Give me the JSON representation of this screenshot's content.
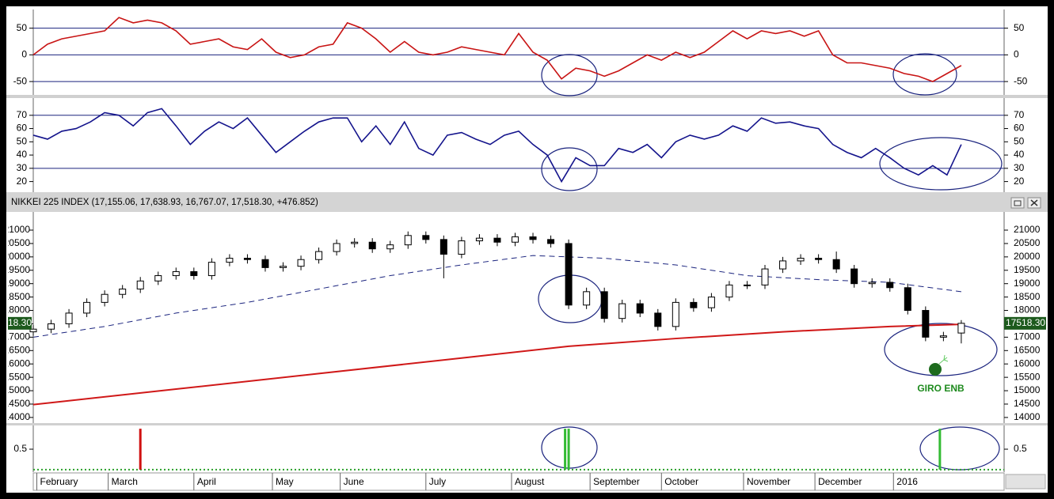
{
  "chart_data": [
    {
      "type": "line",
      "xlim": [
        0,
        272
      ],
      "ylim": [
        -75,
        85
      ],
      "yticks": [
        -50,
        0,
        50
      ],
      "reference_lines": [
        50,
        0,
        -50
      ],
      "x": [
        0,
        4,
        8,
        12,
        16,
        20,
        24,
        28,
        32,
        36,
        40,
        44,
        48,
        52,
        56,
        60,
        64,
        68,
        72,
        76,
        80,
        84,
        88,
        92,
        96,
        100,
        104,
        108,
        112,
        116,
        120,
        124,
        128,
        132,
        136,
        140,
        144,
        148,
        152,
        156,
        160,
        164,
        168,
        172,
        176,
        180,
        184,
        188,
        192,
        196,
        200,
        204,
        208,
        212,
        216,
        220,
        224,
        228,
        232,
        236,
        240,
        244,
        248,
        252,
        256,
        260
      ],
      "series": [
        {
          "color": "#c81414",
          "values": [
            0,
            20,
            30,
            35,
            40,
            45,
            70,
            60,
            65,
            60,
            45,
            20,
            25,
            30,
            15,
            10,
            30,
            5,
            -5,
            0,
            15,
            20,
            60,
            50,
            30,
            5,
            25,
            5,
            0,
            5,
            15,
            10,
            5,
            0,
            40,
            5,
            -10,
            -45,
            -25,
            -30,
            -40,
            -30,
            -15,
            0,
            -10,
            5,
            -5,
            5,
            25,
            45,
            30,
            45,
            40,
            45,
            35,
            45,
            0,
            -15,
            -15,
            -20,
            -25,
            -35,
            -40,
            -50,
            -35,
            -20
          ]
        }
      ]
    },
    {
      "type": "line",
      "xlim": [
        0,
        272
      ],
      "ylim": [
        12,
        83
      ],
      "yticks": [
        20,
        30,
        40,
        50,
        60,
        70
      ],
      "reference_lines": [
        70,
        30
      ],
      "x": [
        0,
        4,
        8,
        12,
        16,
        20,
        24,
        28,
        32,
        36,
        40,
        44,
        48,
        52,
        56,
        60,
        64,
        68,
        72,
        76,
        80,
        84,
        88,
        92,
        96,
        100,
        104,
        108,
        112,
        116,
        120,
        124,
        128,
        132,
        136,
        140,
        144,
        148,
        152,
        156,
        160,
        164,
        168,
        172,
        176,
        180,
        184,
        188,
        192,
        196,
        200,
        204,
        208,
        212,
        216,
        220,
        224,
        228,
        232,
        236,
        240,
        244,
        248,
        252,
        256,
        260
      ],
      "series": [
        {
          "color": "#14148c",
          "values": [
            55,
            52,
            58,
            60,
            65,
            72,
            70,
            62,
            72,
            75,
            62,
            48,
            58,
            65,
            60,
            68,
            55,
            42,
            50,
            58,
            65,
            68,
            68,
            50,
            62,
            48,
            65,
            45,
            40,
            55,
            57,
            52,
            48,
            55,
            58,
            48,
            40,
            20,
            38,
            32,
            32,
            45,
            42,
            48,
            38,
            50,
            55,
            52,
            55,
            62,
            58,
            68,
            64,
            65,
            62,
            60,
            48,
            42,
            38,
            45,
            38,
            30,
            25,
            32,
            25,
            48
          ]
        }
      ]
    },
    {
      "type": "candlestick",
      "title": "NIKKEI 225 INDEX (17,155.06, 17,638.93, 16,767.07, 17,518.30, +476.852)",
      "annotation": "GIRO ENB",
      "xlim": [
        0,
        272
      ],
      "ylim": [
        13790,
        21680
      ],
      "yticks": [
        14000,
        14500,
        15000,
        15500,
        16000,
        16500,
        17000,
        17500,
        18000,
        18500,
        19000,
        19500,
        20000,
        20500,
        21000
      ],
      "up_color": "#ffffff",
      "down_color": "#000000",
      "price_tag": {
        "value": 17518.3,
        "label": "17518.30"
      },
      "x": [
        0,
        5,
        10,
        15,
        20,
        25,
        30,
        35,
        40,
        45,
        50,
        55,
        60,
        65,
        70,
        75,
        80,
        85,
        90,
        95,
        100,
        105,
        110,
        115,
        120,
        125,
        130,
        135,
        140,
        145,
        150,
        155,
        160,
        165,
        170,
        175,
        180,
        185,
        190,
        195,
        200,
        205,
        210,
        215,
        220,
        225,
        230,
        235,
        240,
        245,
        250,
        255,
        260
      ],
      "open": [
        17200,
        17300,
        17500,
        17900,
        18300,
        18600,
        18800,
        19100,
        19300,
        19450,
        19300,
        19800,
        19950,
        19900,
        19600,
        19650,
        19900,
        20200,
        20500,
        20550,
        20300,
        20450,
        20800,
        20650,
        20100,
        20600,
        20700,
        20550,
        20750,
        20650,
        20500,
        18200,
        18700,
        17700,
        18250,
        17900,
        17400,
        18300,
        18100,
        18500,
        18950,
        18950,
        19550,
        19850,
        19950,
        19900,
        19550,
        19000,
        19050,
        18850,
        18000,
        17000,
        17155.06
      ],
      "high": [
        17450,
        17650,
        18050,
        18450,
        18750,
        18950,
        19250,
        19450,
        19600,
        19600,
        19950,
        20100,
        20100,
        20050,
        19800,
        20050,
        20350,
        20650,
        20700,
        20700,
        20600,
        20950,
        20950,
        20800,
        20750,
        20850,
        20850,
        20900,
        20900,
        20800,
        20650,
        18850,
        18850,
        18400,
        18400,
        18050,
        18450,
        18450,
        18650,
        19100,
        19100,
        19700,
        20000,
        20100,
        20100,
        20200,
        19700,
        19200,
        19200,
        19000,
        18150,
        17200,
        17638.93
      ],
      "low": [
        17050,
        17150,
        17350,
        17750,
        18150,
        18450,
        18650,
        18950,
        19150,
        19150,
        19150,
        19650,
        19750,
        19450,
        19450,
        19500,
        19750,
        20050,
        20350,
        20150,
        20150,
        20300,
        20500,
        19200,
        19950,
        20450,
        20400,
        20400,
        20500,
        20350,
        18050,
        18050,
        17550,
        17550,
        17750,
        17250,
        17250,
        17950,
        17950,
        18350,
        18800,
        18800,
        19400,
        19700,
        19750,
        19400,
        18850,
        18850,
        18700,
        17850,
        16850,
        16850,
        16767.07
      ],
      "close": [
        17300,
        17500,
        17900,
        18300,
        18600,
        18800,
        19100,
        19300,
        19450,
        19300,
        19800,
        19950,
        19900,
        19600,
        19650,
        19900,
        20200,
        20500,
        20550,
        20300,
        20450,
        20800,
        20650,
        20100,
        20600,
        20700,
        20550,
        20750,
        20650,
        20500,
        18200,
        18700,
        17700,
        18250,
        17900,
        17400,
        18300,
        18100,
        18500,
        18950,
        18950,
        19550,
        19850,
        19950,
        19900,
        19550,
        19000,
        19050,
        18850,
        18000,
        17000,
        17050,
        17518.3
      ],
      "series": [
        {
          "color": "#1a237e",
          "dash": true,
          "x": [
            0,
            20,
            40,
            60,
            80,
            100,
            120,
            140,
            160,
            180,
            200,
            220,
            240,
            260
          ],
          "values": [
            17000,
            17400,
            17900,
            18300,
            18800,
            19300,
            19700,
            20050,
            19950,
            19700,
            19300,
            19150,
            19050,
            18700
          ]
        },
        {
          "color": "#d01818",
          "dash": false,
          "x": [
            0,
            40,
            80,
            120,
            150,
            180,
            210,
            240,
            260
          ],
          "values": [
            14480,
            15060,
            15640,
            16220,
            16660,
            16950,
            17200,
            17400,
            17480
          ]
        }
      ]
    },
    {
      "type": "bar",
      "xlim": [
        0,
        272
      ],
      "ylim": [
        -0.06,
        1.08
      ],
      "yticks": [
        0.5
      ],
      "reference_lines": [
        0
      ],
      "reference_color": "#2aa02a",
      "x": [
        30,
        149,
        150,
        254
      ],
      "values": [
        1,
        1,
        1,
        1
      ],
      "colors": [
        "#d01010",
        "#33bb33",
        "#33bb33",
        "#33bb33"
      ],
      "xticks": [
        {
          "value": 1,
          "label": "February"
        },
        {
          "value": 21,
          "label": "March"
        },
        {
          "value": 45,
          "label": "April"
        },
        {
          "value": 67,
          "label": "May"
        },
        {
          "value": 86,
          "label": "June"
        },
        {
          "value": 110,
          "label": "July"
        },
        {
          "value": 134,
          "label": "August"
        },
        {
          "value": 156,
          "label": "September"
        },
        {
          "value": 176,
          "label": "October"
        },
        {
          "value": 199,
          "label": "November"
        },
        {
          "value": 219,
          "label": "December"
        },
        {
          "value": 241,
          "label": "2016"
        }
      ]
    }
  ]
}
